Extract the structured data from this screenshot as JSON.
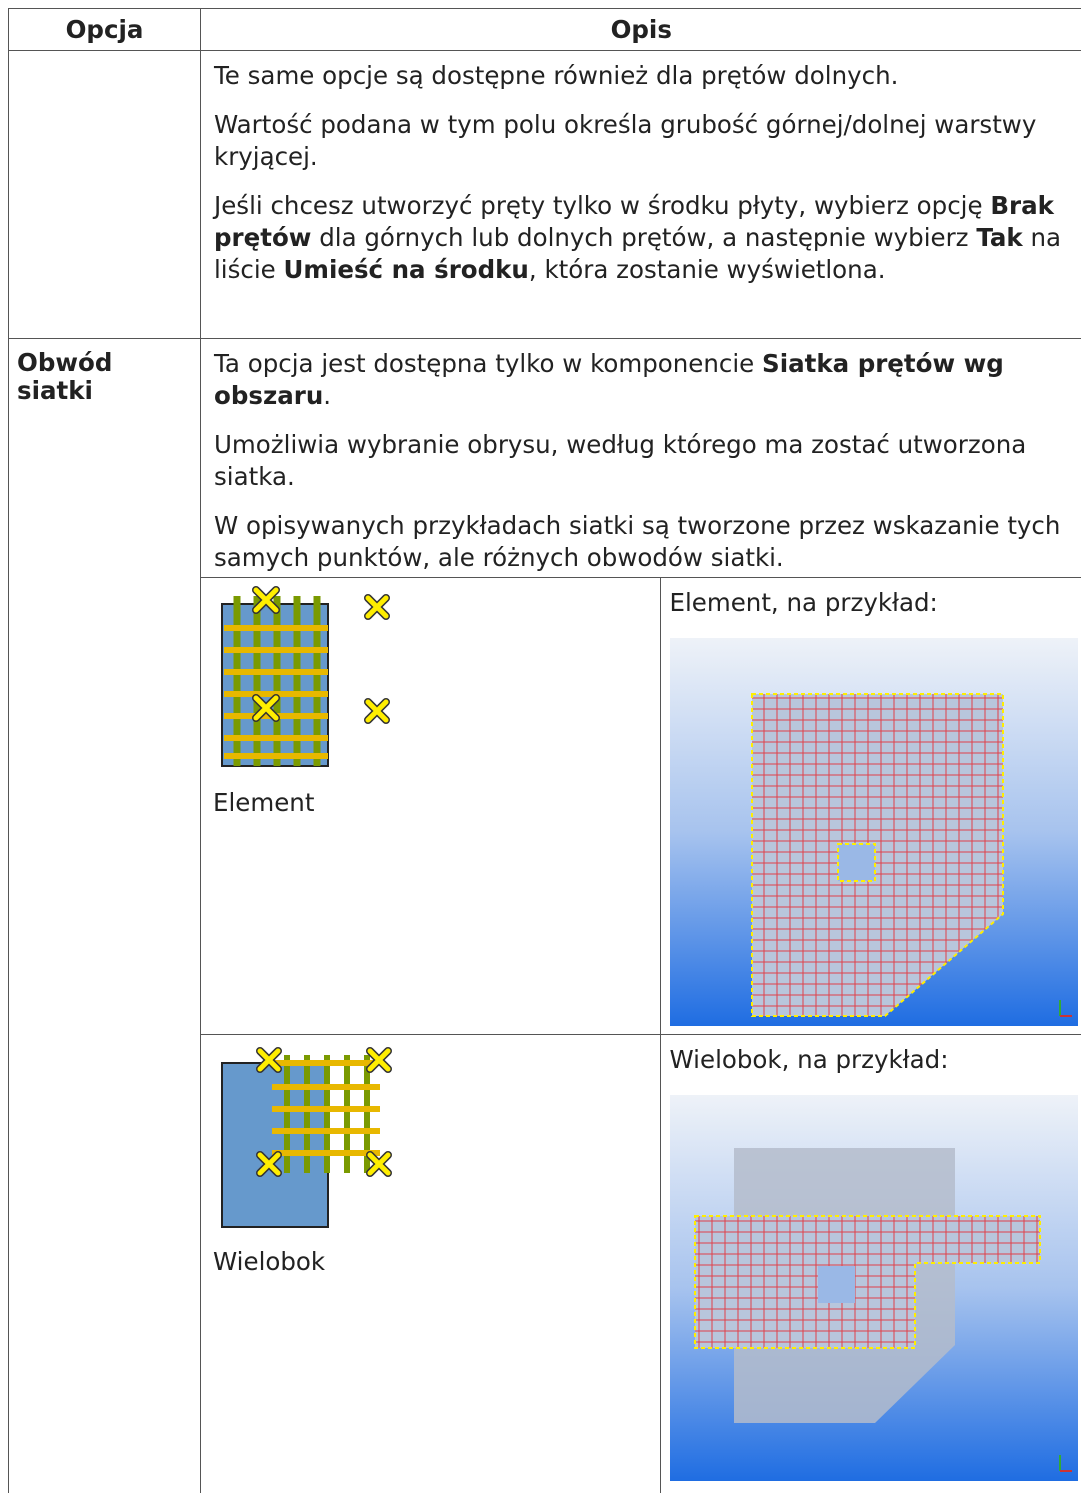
{
  "header": {
    "option": "Opcja",
    "description": "Opis"
  },
  "rows": [
    {
      "paragraphs": [
        [
          {
            "text": "Te same opcje są dostępne również dla prętów dolnych."
          }
        ],
        [
          {
            "text": "Wartość podana w tym polu określa grubość górnej/dolnej warstwy kryjącej."
          }
        ],
        [
          {
            "text": "Jeśli chcesz utworzyć pręty tylko w środku płyty, wybierz opcję "
          },
          {
            "text": "Brak prętów",
            "bold": true
          },
          {
            "text": " dla górnych lub dolnych prętów, a następnie wybierz "
          },
          {
            "text": "Tak",
            "bold": true
          },
          {
            "text": " na liście "
          },
          {
            "text": "Umieść na środku",
            "bold": true
          },
          {
            "text": ", która zostanie wyświetlona."
          }
        ]
      ]
    },
    {
      "option": "Obwód siatki",
      "paragraphs": [
        [
          {
            "text": "Ta opcja jest dostępna tylko w komponencie "
          },
          {
            "text": "Siatka prętów wg obszaru",
            "bold": true
          },
          {
            "text": "."
          }
        ],
        [
          {
            "text": "Umożliwia wybranie obrysu, według którego ma zostać utworzona siatka."
          }
        ],
        [
          {
            "text": "W opisywanych przykładach siatki są tworzone przez wskazanie tych samych punktów, ale różnych obwodów siatki."
          }
        ]
      ],
      "examples": [
        {
          "label": "Element",
          "caption": "Element, na przykład:"
        },
        {
          "label": "Wielobok",
          "caption": "Wielobok, na przykład:"
        }
      ]
    }
  ]
}
